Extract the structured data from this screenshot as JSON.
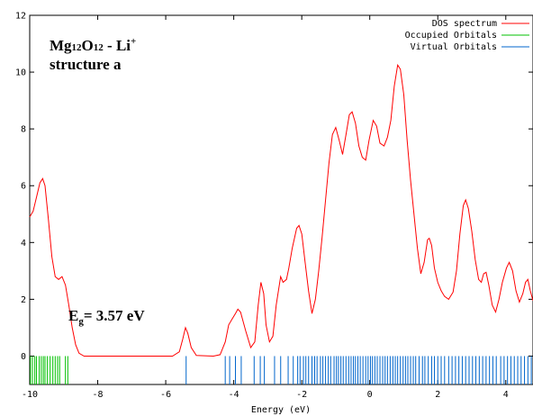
{
  "chart_data": {
    "type": "line",
    "title": "",
    "xlabel": "Energy (eV)",
    "ylabel": "",
    "xlim": [
      -10,
      4.8
    ],
    "ylim": [
      -1,
      12
    ],
    "grid": false,
    "legend_position": "top-right",
    "x_ticks": [
      -10,
      -8,
      -6,
      -4,
      -2,
      0,
      2,
      4
    ],
    "x_tick_labels": [
      "-10",
      "-8",
      "-6",
      "-4",
      "-2",
      "0",
      "2",
      "4"
    ],
    "y_ticks": [
      0,
      2,
      4,
      6,
      8,
      10,
      12
    ],
    "y_tick_labels": [
      "0",
      "2",
      "4",
      "6",
      "8",
      "10",
      "12"
    ],
    "annotations": {
      "formula_main1": "Mg",
      "formula_sub1": "12",
      "formula_main2": "O",
      "formula_sub2": "12",
      "formula_main3": " - Li",
      "formula_sup": "+",
      "structure": "structure a",
      "gap_main": "E",
      "gap_sub": "g",
      "gap_rest": "= 3.57 eV"
    },
    "series": [
      {
        "name": "DOS spectrum",
        "color": "#ff0000",
        "points": [
          [
            -10,
            4.9
          ],
          [
            -9.9,
            5.1
          ],
          [
            -9.8,
            5.6
          ],
          [
            -9.7,
            6.1
          ],
          [
            -9.62,
            6.25
          ],
          [
            -9.55,
            6.0
          ],
          [
            -9.45,
            4.8
          ],
          [
            -9.35,
            3.5
          ],
          [
            -9.25,
            2.8
          ],
          [
            -9.15,
            2.7
          ],
          [
            -9.05,
            2.8
          ],
          [
            -8.95,
            2.5
          ],
          [
            -8.85,
            1.8
          ],
          [
            -8.75,
            1.0
          ],
          [
            -8.65,
            0.4
          ],
          [
            -8.55,
            0.1
          ],
          [
            -8.4,
            0.0
          ],
          [
            -5.8,
            0.0
          ],
          [
            -5.6,
            0.15
          ],
          [
            -5.5,
            0.6
          ],
          [
            -5.42,
            1.0
          ],
          [
            -5.35,
            0.8
          ],
          [
            -5.25,
            0.3
          ],
          [
            -5.1,
            0.02
          ],
          [
            -4.6,
            0.0
          ],
          [
            -4.4,
            0.05
          ],
          [
            -4.25,
            0.5
          ],
          [
            -4.15,
            1.1
          ],
          [
            -4.05,
            1.3
          ],
          [
            -3.95,
            1.5
          ],
          [
            -3.88,
            1.65
          ],
          [
            -3.8,
            1.55
          ],
          [
            -3.65,
            0.9
          ],
          [
            -3.5,
            0.3
          ],
          [
            -3.38,
            0.5
          ],
          [
            -3.28,
            1.8
          ],
          [
            -3.2,
            2.6
          ],
          [
            -3.12,
            2.2
          ],
          [
            -3.05,
            1.1
          ],
          [
            -2.95,
            0.5
          ],
          [
            -2.85,
            0.7
          ],
          [
            -2.75,
            1.8
          ],
          [
            -2.62,
            2.8
          ],
          [
            -2.55,
            2.6
          ],
          [
            -2.45,
            2.7
          ],
          [
            -2.38,
            3.1
          ],
          [
            -2.28,
            3.8
          ],
          [
            -2.15,
            4.5
          ],
          [
            -2.08,
            4.6
          ],
          [
            -2.0,
            4.3
          ],
          [
            -1.9,
            3.3
          ],
          [
            -1.8,
            2.3
          ],
          [
            -1.7,
            1.5
          ],
          [
            -1.6,
            2.0
          ],
          [
            -1.5,
            3.0
          ],
          [
            -1.4,
            4.2
          ],
          [
            -1.3,
            5.5
          ],
          [
            -1.2,
            6.8
          ],
          [
            -1.1,
            7.8
          ],
          [
            -1.0,
            8.05
          ],
          [
            -0.9,
            7.6
          ],
          [
            -0.8,
            7.1
          ],
          [
            -0.7,
            7.8
          ],
          [
            -0.6,
            8.5
          ],
          [
            -0.52,
            8.6
          ],
          [
            -0.42,
            8.2
          ],
          [
            -0.32,
            7.4
          ],
          [
            -0.22,
            7.0
          ],
          [
            -0.12,
            6.9
          ],
          [
            -0.02,
            7.6
          ],
          [
            0.1,
            8.3
          ],
          [
            0.2,
            8.1
          ],
          [
            0.3,
            7.5
          ],
          [
            0.42,
            7.4
          ],
          [
            0.52,
            7.7
          ],
          [
            0.62,
            8.3
          ],
          [
            0.72,
            9.5
          ],
          [
            0.82,
            10.25
          ],
          [
            0.9,
            10.1
          ],
          [
            1.0,
            9.2
          ],
          [
            1.1,
            7.6
          ],
          [
            1.2,
            6.2
          ],
          [
            1.3,
            5.0
          ],
          [
            1.4,
            3.8
          ],
          [
            1.5,
            2.9
          ],
          [
            1.6,
            3.3
          ],
          [
            1.7,
            4.1
          ],
          [
            1.75,
            4.15
          ],
          [
            1.82,
            3.9
          ],
          [
            1.9,
            3.1
          ],
          [
            2.0,
            2.6
          ],
          [
            2.1,
            2.3
          ],
          [
            2.2,
            2.1
          ],
          [
            2.32,
            2.0
          ],
          [
            2.45,
            2.25
          ],
          [
            2.55,
            3.0
          ],
          [
            2.65,
            4.3
          ],
          [
            2.75,
            5.3
          ],
          [
            2.82,
            5.5
          ],
          [
            2.9,
            5.2
          ],
          [
            3.0,
            4.4
          ],
          [
            3.1,
            3.4
          ],
          [
            3.2,
            2.7
          ],
          [
            3.28,
            2.6
          ],
          [
            3.35,
            2.9
          ],
          [
            3.42,
            2.95
          ],
          [
            3.5,
            2.5
          ],
          [
            3.6,
            1.8
          ],
          [
            3.7,
            1.55
          ],
          [
            3.8,
            2.0
          ],
          [
            3.9,
            2.6
          ],
          [
            4.02,
            3.1
          ],
          [
            4.1,
            3.3
          ],
          [
            4.2,
            3.0
          ],
          [
            4.3,
            2.3
          ],
          [
            4.4,
            1.9
          ],
          [
            4.5,
            2.2
          ],
          [
            4.58,
            2.6
          ],
          [
            4.65,
            2.7
          ],
          [
            4.72,
            2.3
          ],
          [
            4.8,
            1.95
          ]
        ]
      },
      {
        "name": "Occupied Orbitals",
        "color": "#00c000",
        "x": [
          -9.98,
          -9.92,
          -9.85,
          -9.8,
          -9.72,
          -9.66,
          -9.6,
          -9.55,
          -9.48,
          -9.4,
          -9.32,
          -9.25,
          -9.18,
          -9.12,
          -8.95,
          -8.88
        ]
      },
      {
        "name": "Virtual Orbitals",
        "color": "#0066cc",
        "x": [
          -5.4,
          -4.25,
          -4.12,
          -3.95,
          -3.78,
          -3.4,
          -3.22,
          -3.1,
          -2.8,
          -2.62,
          -2.4,
          -2.25,
          -2.12,
          -2.05,
          -1.95,
          -1.88,
          -1.8,
          -1.7,
          -1.62,
          -1.55,
          -1.45,
          -1.38,
          -1.3,
          -1.22,
          -1.15,
          -1.05,
          -0.98,
          -0.92,
          -0.85,
          -0.78,
          -0.7,
          -0.62,
          -0.55,
          -0.48,
          -0.42,
          -0.35,
          -0.28,
          -0.2,
          -0.12,
          -0.05,
          0.02,
          0.08,
          0.15,
          0.22,
          0.3,
          0.38,
          0.45,
          0.52,
          0.6,
          0.68,
          0.75,
          0.82,
          0.9,
          0.98,
          1.05,
          1.12,
          1.2,
          1.28,
          1.35,
          1.45,
          1.55,
          1.62,
          1.72,
          1.82,
          1.9,
          2.0,
          2.1,
          2.2,
          2.32,
          2.42,
          2.52,
          2.62,
          2.72,
          2.82,
          2.92,
          3.02,
          3.12,
          3.22,
          3.32,
          3.42,
          3.52,
          3.62,
          3.72,
          3.85,
          3.95,
          4.05,
          4.15,
          4.25,
          4.35,
          4.45,
          4.55,
          4.65,
          4.75
        ]
      }
    ]
  }
}
